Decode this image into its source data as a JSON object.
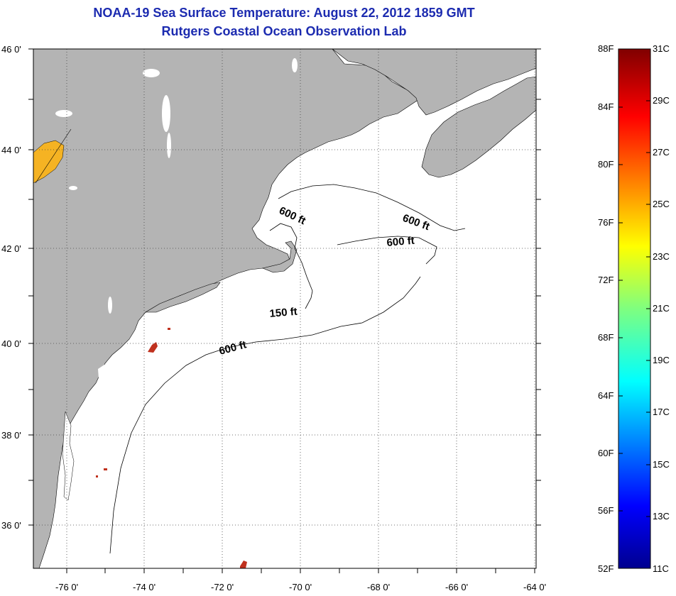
{
  "title": "NOAA-19 Sea Surface Temperature:  August 22, 2012 1859 GMT",
  "subtitle": "Rutgers Coastal Ocean Observation Lab",
  "lat_labels": [
    "46 0'",
    "44 0'",
    "42 0'",
    "40 0'",
    "38 0'",
    "36 0'"
  ],
  "lon_labels": [
    "-76 0'",
    "-74 0'",
    "-72 0'",
    "-70 0'",
    "-68 0'",
    "-66 0'",
    "-64 0'"
  ],
  "contour_labels": [
    "600 ft",
    "600 ft",
    "600 ft",
    "150 ft",
    "600 ft"
  ],
  "colorbar": {
    "fahrenheit": [
      "88F",
      "84F",
      "80F",
      "76F",
      "72F",
      "68F",
      "64F",
      "60F",
      "56F",
      "52F"
    ],
    "celsius": [
      "31C",
      "29C",
      "27C",
      "25C",
      "23C",
      "21C",
      "19C",
      "17C",
      "15C",
      "13C",
      "11C"
    ]
  },
  "colors": {
    "title": "#1c2bb0",
    "land": "#b4b4b4",
    "ocean": "#ffffff",
    "warm_patch": "#f5b323",
    "hot_spot": "#c0311e"
  }
}
